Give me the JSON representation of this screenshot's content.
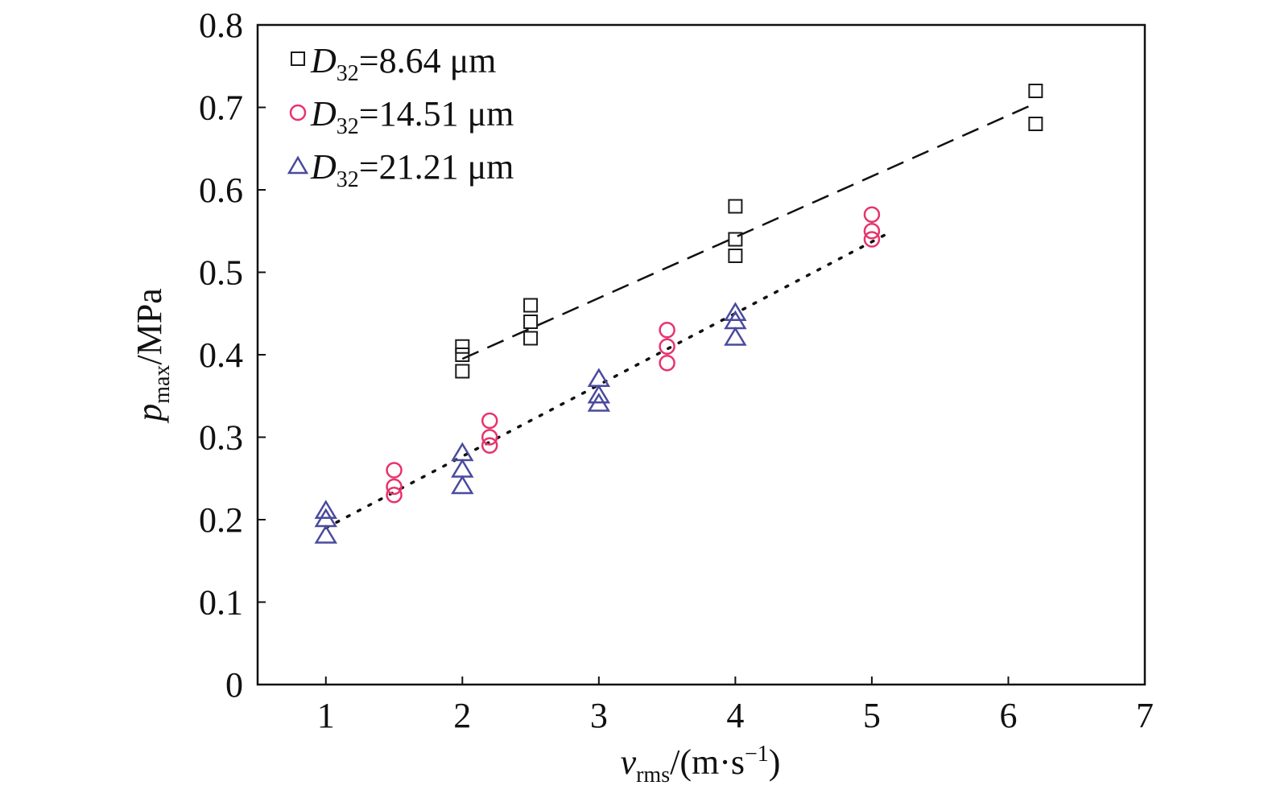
{
  "chart_data": {
    "type": "scatter",
    "x_axis": {
      "label_main": "v",
      "label_sub": "rms",
      "label_unit_pre": "/(m·s",
      "label_unit_sup": "−1",
      "label_unit_post": ")",
      "range": [
        0.5,
        7
      ],
      "ticks": [
        "1",
        "2",
        "3",
        "4",
        "5",
        "6",
        "7"
      ]
    },
    "y_axis": {
      "label_main": "p",
      "label_sub": "max",
      "label_unit": "/MPa",
      "range": [
        0,
        0.8
      ],
      "ticks": [
        "0",
        "0.1",
        "0.2",
        "0.3",
        "0.4",
        "0.5",
        "0.6",
        "0.7",
        "0.8"
      ]
    },
    "grid": false,
    "legend_position": "top-left",
    "series": [
      {
        "name": "D32=8.64 μm",
        "legend_var": "D",
        "legend_sub": "32",
        "legend_rest": "=8.64 μm",
        "marker": "square",
        "color": "#1a1a1a",
        "points": [
          [
            2,
            0.38
          ],
          [
            2,
            0.4
          ],
          [
            2,
            0.41
          ],
          [
            2.5,
            0.42
          ],
          [
            2.5,
            0.44
          ],
          [
            2.5,
            0.46
          ],
          [
            4,
            0.52
          ],
          [
            4,
            0.54
          ],
          [
            4,
            0.58
          ],
          [
            6.2,
            0.68
          ],
          [
            6.2,
            0.72
          ]
        ],
        "trend": {
          "style": "dashed",
          "from": [
            2,
            0.395
          ],
          "to": [
            6.2,
            0.705
          ]
        }
      },
      {
        "name": "D32=14.51 μm",
        "legend_var": "D",
        "legend_sub": "32",
        "legend_rest": "=14.51 μm",
        "marker": "circle",
        "color": "#e8336d",
        "points": [
          [
            1.5,
            0.23
          ],
          [
            1.5,
            0.24
          ],
          [
            1.5,
            0.26
          ],
          [
            2.2,
            0.29
          ],
          [
            2.2,
            0.3
          ],
          [
            2.2,
            0.32
          ],
          [
            3.5,
            0.39
          ],
          [
            3.5,
            0.41
          ],
          [
            3.5,
            0.43
          ],
          [
            5,
            0.54
          ],
          [
            5,
            0.55
          ],
          [
            5,
            0.57
          ]
        ],
        "trend": {
          "style": "dotted",
          "from": [
            1,
            0.19
          ],
          "to": [
            5.15,
            0.55
          ]
        }
      },
      {
        "name": "D32=21.21 μm",
        "legend_var": "D",
        "legend_sub": "32",
        "legend_rest": "=21.21 μm",
        "marker": "triangle",
        "color": "#4a4a9e",
        "points": [
          [
            1,
            0.18
          ],
          [
            1,
            0.2
          ],
          [
            1,
            0.21
          ],
          [
            2,
            0.24
          ],
          [
            2,
            0.26
          ],
          [
            2,
            0.28
          ],
          [
            3,
            0.34
          ],
          [
            3,
            0.35
          ],
          [
            3,
            0.37
          ],
          [
            4,
            0.42
          ],
          [
            4,
            0.44
          ],
          [
            4,
            0.45
          ]
        ]
      }
    ]
  }
}
